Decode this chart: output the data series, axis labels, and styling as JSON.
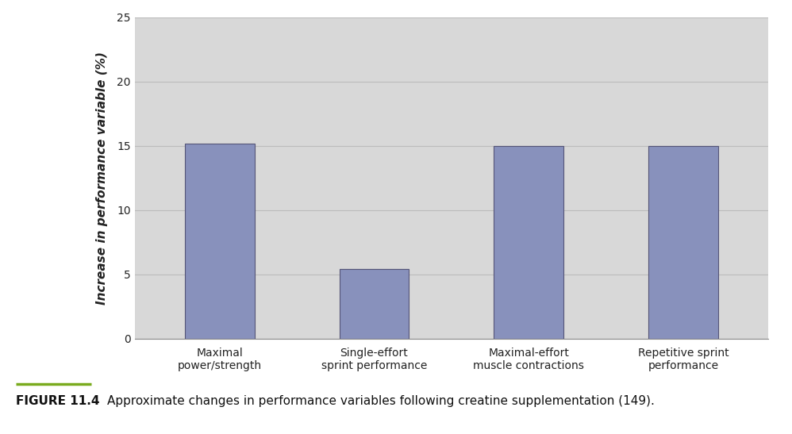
{
  "categories": [
    "Maximal\npower/strength",
    "Single-effort\nsprint performance",
    "Maximal-effort\nmuscle contractions",
    "Repetitive sprint\nperformance"
  ],
  "values": [
    15.2,
    5.4,
    15.0,
    15.0
  ],
  "bar_color": "#8891bc",
  "bar_edge_color": "#555577",
  "bar_width": 0.45,
  "ylim": [
    0,
    25
  ],
  "yticks": [
    0,
    5,
    10,
    15,
    20,
    25
  ],
  "ylabel": "Increase in performance variable (%)",
  "plot_bg_color": "#d8d8d8",
  "fig_bg_color": "#ffffff",
  "caption_label": "FIGURE 11.4",
  "caption_text": "   Approximate changes in performance variables following creatine supplementation (149).",
  "caption_label_color": "#7aab1e",
  "ylabel_fontsize": 11,
  "tick_fontsize": 10,
  "caption_fontsize": 11,
  "grid_color": "#bbbbbb"
}
